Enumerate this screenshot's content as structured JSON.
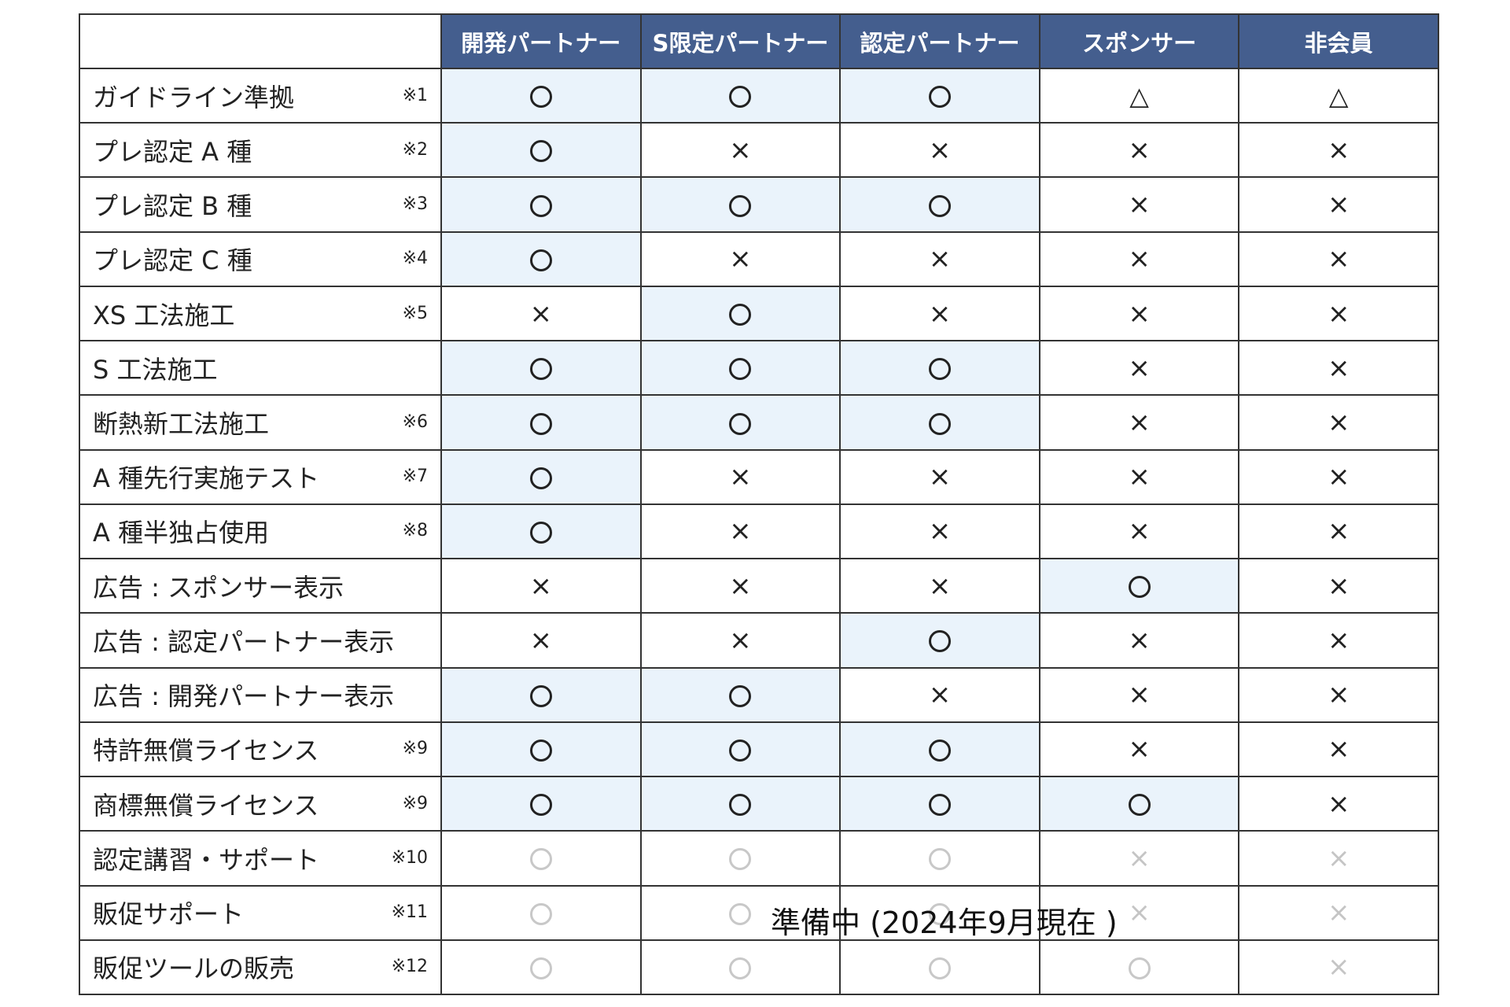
{
  "columns": [
    "開発パートナー",
    "S限定パートナー",
    "認定パートナー",
    "スポンサー",
    "非会員"
  ],
  "symbols": {
    "o": "○",
    "x": "×",
    "t": "△"
  },
  "rows": [
    {
      "label": "ガイドライン準拠",
      "note": "※1",
      "values": [
        "o",
        "o",
        "o",
        "t",
        "t"
      ]
    },
    {
      "label": "プレ認定 A 種",
      "note": "※2",
      "values": [
        "o",
        "x",
        "x",
        "x",
        "x"
      ]
    },
    {
      "label": "プレ認定 B 種",
      "note": "※3",
      "values": [
        "o",
        "o",
        "o",
        "x",
        "x"
      ]
    },
    {
      "label": "プレ認定 C 種",
      "note": "※4",
      "values": [
        "o",
        "x",
        "x",
        "x",
        "x"
      ]
    },
    {
      "label": "XS 工法施工",
      "note": "※5",
      "values": [
        "x",
        "o",
        "x",
        "x",
        "x"
      ]
    },
    {
      "label": "S 工法施工",
      "note": "",
      "values": [
        "o",
        "o",
        "o",
        "x",
        "x"
      ]
    },
    {
      "label": "断熱新工法施工",
      "note": "※6",
      "values": [
        "o",
        "o",
        "o",
        "x",
        "x"
      ]
    },
    {
      "label": "A 種先行実施テスト",
      "note": "※7",
      "values": [
        "o",
        "x",
        "x",
        "x",
        "x"
      ]
    },
    {
      "label": "A 種半独占使用",
      "note": "※8",
      "values": [
        "o",
        "x",
        "x",
        "x",
        "x"
      ]
    },
    {
      "label": "広告 : スポンサー表示",
      "note": "",
      "values": [
        "x",
        "x",
        "x",
        "o",
        "x"
      ]
    },
    {
      "label": "広告 : 認定パートナー表示",
      "note": "",
      "values": [
        "x",
        "x",
        "o",
        "x",
        "x"
      ]
    },
    {
      "label": "広告 : 開発パートナー表示",
      "note": "",
      "values": [
        "o",
        "o",
        "x",
        "x",
        "x"
      ]
    },
    {
      "label": "特許無償ライセンス",
      "note": "※9",
      "values": [
        "o",
        "o",
        "o",
        "x",
        "x"
      ]
    },
    {
      "label": "商標無償ライセンス",
      "note": "※9",
      "values": [
        "o",
        "o",
        "o",
        "o",
        "x"
      ]
    },
    {
      "label": "認定講習・サポート",
      "note": "※10",
      "values": [
        "o",
        "o",
        "o",
        "x",
        "x"
      ],
      "pending": true
    },
    {
      "label": "販促サポート",
      "note": "※11",
      "values": [
        "o",
        "o",
        "o",
        "x",
        "x"
      ],
      "pending": true
    },
    {
      "label": "販促ツールの販売",
      "note": "※12",
      "values": [
        "o",
        "o",
        "o",
        "o",
        "x"
      ],
      "pending": true
    }
  ],
  "pending_notice": "準備中 (2024年9月現在 )"
}
